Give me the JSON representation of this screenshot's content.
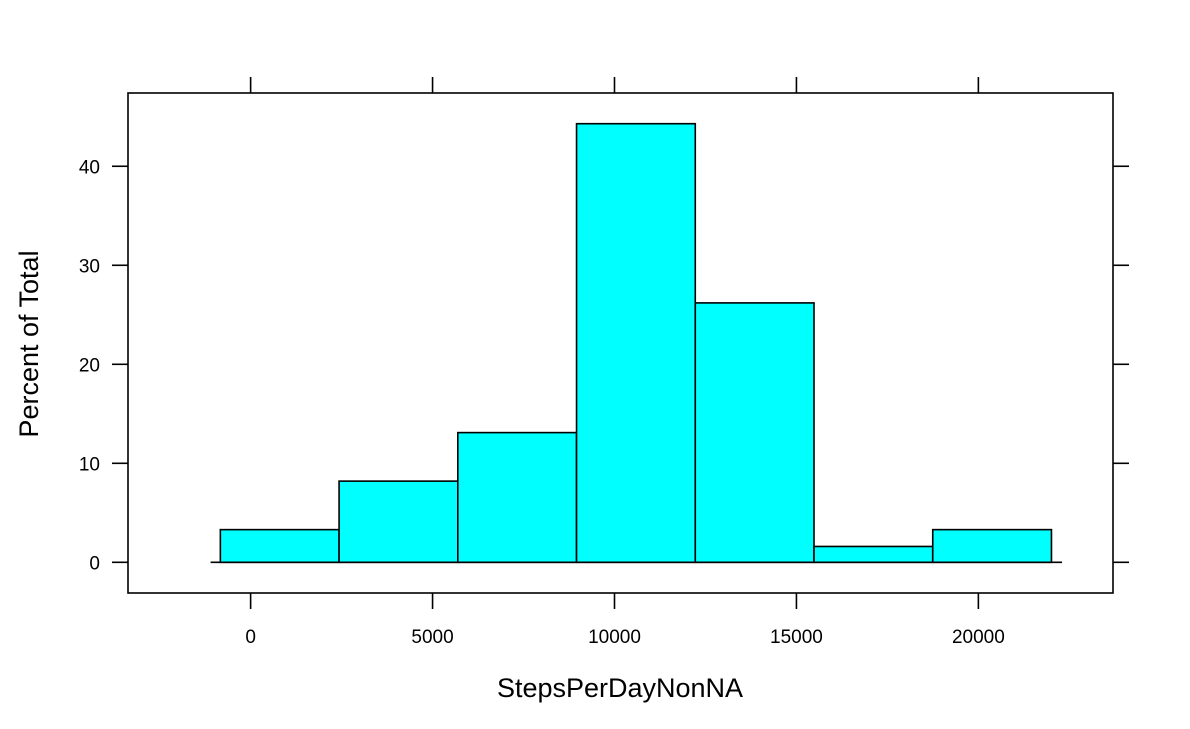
{
  "chart_data": {
    "type": "bar",
    "xlabel": "StepsPerDayNonNA",
    "ylabel": "Percent of Total",
    "bins": [
      {
        "x0": -832,
        "x1": 2431,
        "value": 3.3
      },
      {
        "x0": 2431,
        "x1": 5694,
        "value": 8.2
      },
      {
        "x0": 5694,
        "x1": 8957,
        "value": 13.1
      },
      {
        "x0": 8957,
        "x1": 12220,
        "value": 44.3
      },
      {
        "x0": 12220,
        "x1": 15483,
        "value": 26.2
      },
      {
        "x0": 15483,
        "x1": 18746,
        "value": 1.6
      },
      {
        "x0": 18746,
        "x1": 22009,
        "value": 3.3
      }
    ],
    "xlim": [
      -3370,
      23700
    ],
    "ylim": [
      -3.1,
      47.4
    ],
    "x_ticks": [
      0,
      5000,
      10000,
      15000,
      20000
    ],
    "y_ticks": [
      0,
      10,
      20,
      30,
      40
    ],
    "baseline_range": [
      -1100,
      22300
    ],
    "bar_fill": "#00FFFF",
    "bar_stroke": "#000000",
    "grid": false,
    "legend": "none"
  }
}
